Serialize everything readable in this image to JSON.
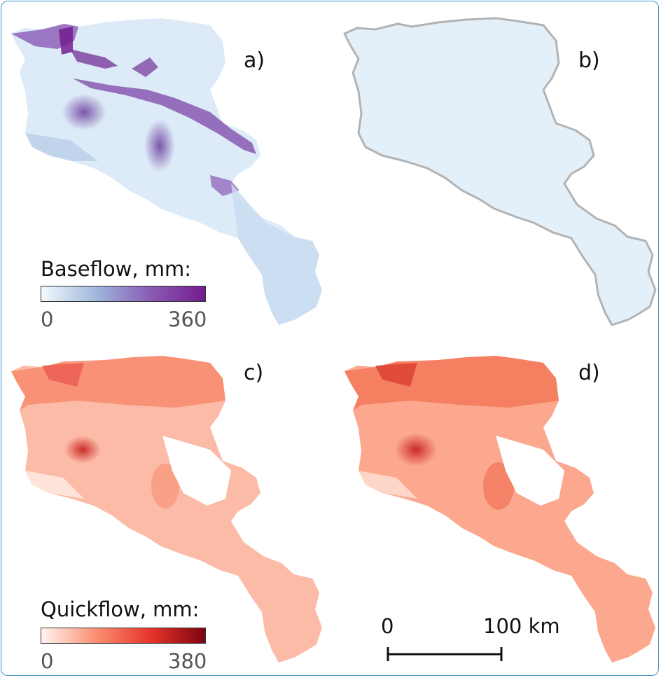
{
  "panels": [
    {
      "label": "a)",
      "variable": "baseflow"
    },
    {
      "label": "b)",
      "variable": "baseflow"
    },
    {
      "label": "c)",
      "variable": "quickflow"
    },
    {
      "label": "d)",
      "variable": "quickflow"
    }
  ],
  "legend_baseflow": {
    "title": "Baseflow, mm:",
    "min": "0",
    "max": "360",
    "colors": [
      "#f4f9fd",
      "#9fb8dc",
      "#8a5bb5",
      "#741d8e"
    ]
  },
  "legend_quickflow": {
    "title": "Quickflow, mm:",
    "min": "0",
    "max": "380",
    "colors": [
      "#fff5f0",
      "#fb8f72",
      "#e8342a",
      "#7c0410"
    ]
  },
  "scale_bar": {
    "start": "0",
    "end": "100 km"
  },
  "colors": {
    "frame": "#3a8fc0",
    "boundary": "#b3b3b3",
    "baseflow_low": "#e3f0fa",
    "quickflow_mid": "#fcb7a0"
  }
}
